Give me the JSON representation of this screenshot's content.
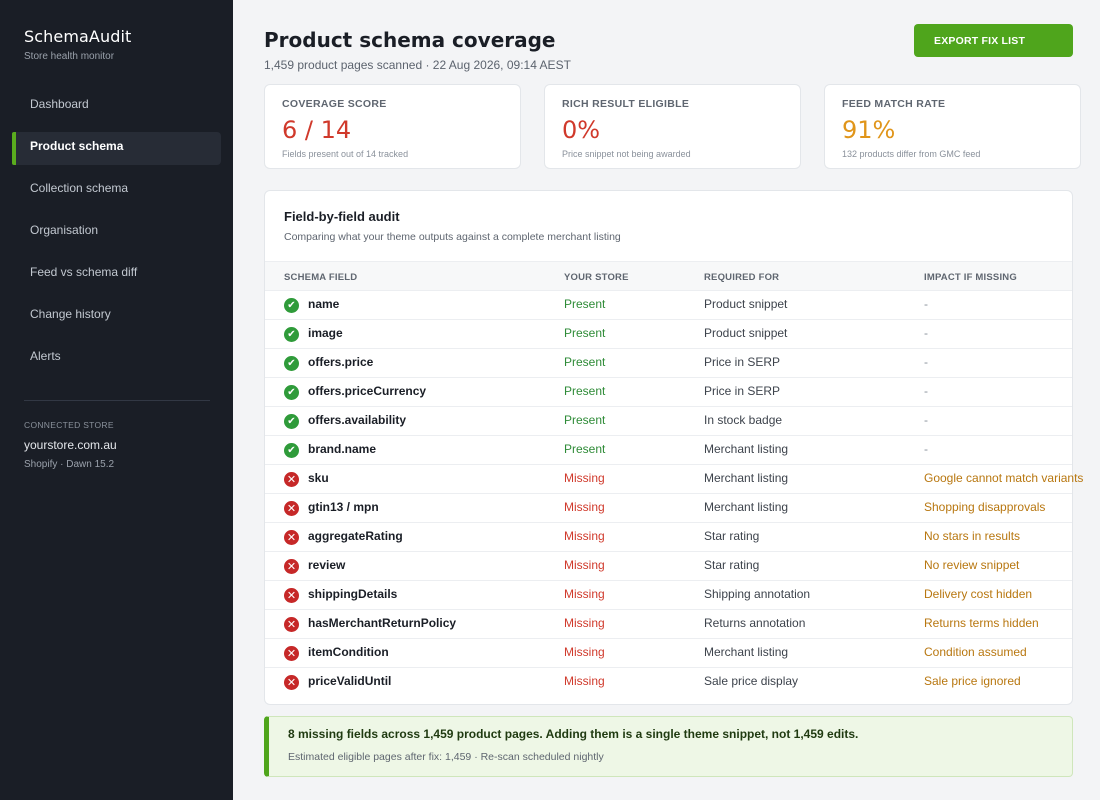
{
  "sidebar": {
    "brand": "SchemaAudit",
    "tagline": "Store health monitor",
    "items": [
      {
        "label": "Dashboard",
        "active": false
      },
      {
        "label": "Product schema",
        "active": true
      },
      {
        "label": "Collection schema",
        "active": false
      },
      {
        "label": "Organisation",
        "active": false
      },
      {
        "label": "Feed vs schema diff",
        "active": false
      },
      {
        "label": "Change history",
        "active": false
      },
      {
        "label": "Alerts",
        "active": false
      }
    ],
    "store": {
      "label": "CONNECTED STORE",
      "domain": "yourstore.com.au",
      "meta": "Shopify · Dawn 15.2"
    }
  },
  "header": {
    "title": "Product schema coverage",
    "subtitle": "1,459 product pages scanned  ·  22 Aug 2026, 09:14 AEST",
    "export_label": "EXPORT FIX LIST"
  },
  "metrics": [
    {
      "label": "COVERAGE SCORE",
      "value": "6 / 14",
      "note": "Fields present out of 14 tracked",
      "tone": "red"
    },
    {
      "label": "RICH RESULT ELIGIBLE",
      "value": "0%",
      "note": "Price snippet not being awarded",
      "tone": "red"
    },
    {
      "label": "FEED MATCH RATE",
      "value": "91%",
      "note": "132 products differ from GMC feed",
      "tone": "amber"
    }
  ],
  "audit": {
    "title": "Field-by-field audit",
    "subtitle": "Comparing what your theme outputs against a complete merchant listing",
    "columns": [
      "SCHEMA FIELD",
      "YOUR STORE",
      "REQUIRED FOR",
      "IMPACT IF MISSING"
    ],
    "rows": [
      {
        "field": "name",
        "status": "Present",
        "ok": true,
        "required": "Product snippet",
        "impact": "-"
      },
      {
        "field": "image",
        "status": "Present",
        "ok": true,
        "required": "Product snippet",
        "impact": "-"
      },
      {
        "field": "offers.price",
        "status": "Present",
        "ok": true,
        "required": "Price in SERP",
        "impact": "-"
      },
      {
        "field": "offers.priceCurrency",
        "status": "Present",
        "ok": true,
        "required": "Price in SERP",
        "impact": "-"
      },
      {
        "field": "offers.availability",
        "status": "Present",
        "ok": true,
        "required": "In stock badge",
        "impact": "-"
      },
      {
        "field": "brand.name",
        "status": "Present",
        "ok": true,
        "required": "Merchant listing",
        "impact": "-"
      },
      {
        "field": "sku",
        "status": "Missing",
        "ok": false,
        "required": "Merchant listing",
        "impact": "Google cannot match variants"
      },
      {
        "field": "gtin13 / mpn",
        "status": "Missing",
        "ok": false,
        "required": "Merchant listing",
        "impact": "Shopping disapprovals"
      },
      {
        "field": "aggregateRating",
        "status": "Missing",
        "ok": false,
        "required": "Star rating",
        "impact": "No stars in results"
      },
      {
        "field": "review",
        "status": "Missing",
        "ok": false,
        "required": "Star rating",
        "impact": "No review snippet"
      },
      {
        "field": "shippingDetails",
        "status": "Missing",
        "ok": false,
        "required": "Shipping annotation",
        "impact": "Delivery cost hidden"
      },
      {
        "field": "hasMerchantReturnPolicy",
        "status": "Missing",
        "ok": false,
        "required": "Returns annotation",
        "impact": "Returns terms hidden"
      },
      {
        "field": "itemCondition",
        "status": "Missing",
        "ok": false,
        "required": "Merchant listing",
        "impact": "Condition assumed"
      },
      {
        "field": "priceValidUntil",
        "status": "Missing",
        "ok": false,
        "required": "Sale price display",
        "impact": "Sale price ignored"
      }
    ]
  },
  "banner": {
    "main": "8 missing fields across 1,459 product pages. Adding them is a single theme snippet, not 1,459 edits.",
    "sub": "Estimated eligible pages after fix: 1,459  ·  Re-scan scheduled nightly"
  },
  "icons": {
    "ok": "check-circle-icon",
    "bad": "x-circle-icon"
  },
  "colors": {
    "accent": "#4fa51c",
    "present": "#2e8b37",
    "missing": "#d0392b",
    "impact": "#b87710"
  }
}
